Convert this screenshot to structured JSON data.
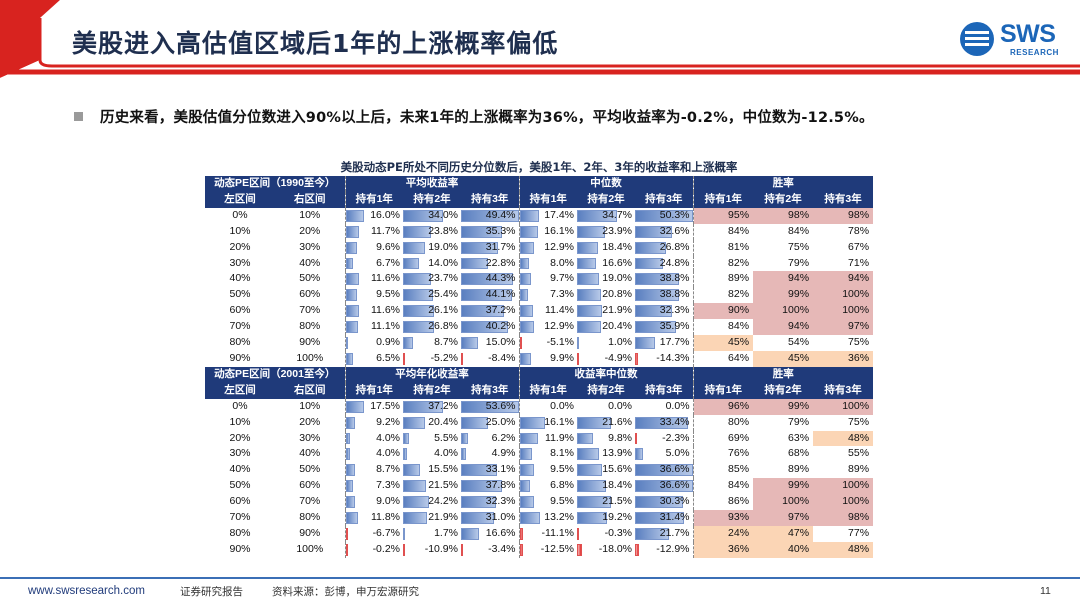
{
  "header": {
    "title": "美股进入高估值区域后1年的上涨概率偏低",
    "logo_text": "SWS",
    "logo_sub": "RESEARCH",
    "accent": "#d8231f"
  },
  "bullet": "历史来看，美股估值分位数进入90%以上后，未来1年的上涨概率为36%，平均收益率为-0.2%，中位数为-12.5%。",
  "table": {
    "caption": "美股动态PE所处不同历史分位数后，美股1年、2年、3年的收益率和上涨概率",
    "sections": [
      {
        "range_title": "动态PE区间（1990至今）",
        "group1_title": "平均收益率",
        "group2_title": "中位数",
        "group3_title": "胜率",
        "sub_headers": [
          "左区间",
          "右区间",
          "持有1年",
          "持有2年",
          "持有3年",
          "持有1年",
          "持有2年",
          "持有3年",
          "持有1年",
          "持有2年",
          "持有3年"
        ],
        "rows": [
          {
            "l": "0%",
            "r": "10%",
            "v": [
              16.0,
              34.0,
              49.4,
              17.4,
              34.7,
              50.3
            ],
            "w": [
              95,
              98,
              98
            ],
            "hl": [
              "pink",
              "pink",
              "pink"
            ]
          },
          {
            "l": "10%",
            "r": "20%",
            "v": [
              11.7,
              23.8,
              35.3,
              16.1,
              23.9,
              32.6
            ],
            "w": [
              84,
              84,
              78
            ],
            "hl": [
              "",
              "",
              ""
            ]
          },
          {
            "l": "20%",
            "r": "30%",
            "v": [
              9.6,
              19.0,
              31.7,
              12.9,
              18.4,
              26.8
            ],
            "w": [
              81,
              75,
              67
            ],
            "hl": [
              "",
              "",
              ""
            ]
          },
          {
            "l": "30%",
            "r": "40%",
            "v": [
              6.7,
              14.0,
              22.8,
              8.0,
              16.6,
              24.8
            ],
            "w": [
              82,
              79,
              71
            ],
            "hl": [
              "",
              "",
              ""
            ]
          },
          {
            "l": "40%",
            "r": "50%",
            "v": [
              11.6,
              23.7,
              44.3,
              9.7,
              19.0,
              38.8
            ],
            "w": [
              89,
              94,
              94
            ],
            "hl": [
              "",
              "pink",
              "pink"
            ]
          },
          {
            "l": "50%",
            "r": "60%",
            "v": [
              9.5,
              25.4,
              44.1,
              7.3,
              20.8,
              38.8
            ],
            "w": [
              82,
              99,
              100
            ],
            "hl": [
              "",
              "pink",
              "pink"
            ]
          },
          {
            "l": "60%",
            "r": "70%",
            "v": [
              11.6,
              26.1,
              37.2,
              11.4,
              21.9,
              32.3
            ],
            "w": [
              90,
              100,
              100
            ],
            "hl": [
              "pink",
              "pink",
              "pink"
            ]
          },
          {
            "l": "70%",
            "r": "80%",
            "v": [
              11.1,
              26.8,
              40.2,
              12.9,
              20.4,
              35.9
            ],
            "w": [
              84,
              94,
              97
            ],
            "hl": [
              "",
              "pink",
              "pink"
            ]
          },
          {
            "l": "80%",
            "r": "90%",
            "v": [
              0.9,
              8.7,
              15.0,
              -5.1,
              1.0,
              17.7
            ],
            "w": [
              45,
              54,
              75
            ],
            "hl": [
              "peach",
              "",
              ""
            ]
          },
          {
            "l": "90%",
            "r": "100%",
            "v": [
              6.5,
              -5.2,
              -8.4,
              9.9,
              -4.9,
              -14.3
            ],
            "w": [
              64,
              45,
              36
            ],
            "hl": [
              "",
              "peach",
              "peach"
            ]
          }
        ]
      },
      {
        "range_title": "动态PE区间（2001至今）",
        "group1_title": "平均年化收益率",
        "group2_title": "收益率中位数",
        "group3_title": "胜率",
        "sub_headers": [
          "左区间",
          "右区间",
          "持有1年",
          "持有2年",
          "持有3年",
          "持有1年",
          "持有2年",
          "持有3年",
          "持有1年",
          "持有2年",
          "持有3年"
        ],
        "rows": [
          {
            "l": "0%",
            "r": "10%",
            "v": [
              17.5,
              37.2,
              53.6,
              0.0,
              0.0,
              0.0
            ],
            "w": [
              96,
              99,
              100
            ],
            "hl": [
              "pink",
              "pink",
              "pink"
            ]
          },
          {
            "l": "10%",
            "r": "20%",
            "v": [
              9.2,
              20.4,
              25.0,
              16.1,
              21.6,
              33.4
            ],
            "w": [
              80,
              79,
              75
            ],
            "hl": [
              "",
              "",
              ""
            ]
          },
          {
            "l": "20%",
            "r": "30%",
            "v": [
              4.0,
              5.5,
              6.2,
              11.9,
              9.8,
              -2.3
            ],
            "w": [
              69,
              63,
              48
            ],
            "hl": [
              "",
              "",
              "peach"
            ]
          },
          {
            "l": "30%",
            "r": "40%",
            "v": [
              4.0,
              4.0,
              4.9,
              8.1,
              13.9,
              5.0
            ],
            "w": [
              76,
              68,
              55
            ],
            "hl": [
              "",
              "",
              ""
            ]
          },
          {
            "l": "40%",
            "r": "50%",
            "v": [
              8.7,
              15.5,
              33.1,
              9.5,
              15.6,
              36.6
            ],
            "w": [
              85,
              89,
              89
            ],
            "hl": [
              "",
              "",
              ""
            ]
          },
          {
            "l": "50%",
            "r": "60%",
            "v": [
              7.3,
              21.5,
              37.8,
              6.8,
              18.4,
              36.6
            ],
            "w": [
              84,
              99,
              100
            ],
            "hl": [
              "",
              "pink",
              "pink"
            ]
          },
          {
            "l": "60%",
            "r": "70%",
            "v": [
              9.0,
              24.2,
              32.3,
              9.5,
              21.5,
              30.3
            ],
            "w": [
              86,
              100,
              100
            ],
            "hl": [
              "",
              "pink",
              "pink"
            ]
          },
          {
            "l": "70%",
            "r": "80%",
            "v": [
              11.8,
              21.9,
              31.0,
              13.2,
              19.2,
              31.4
            ],
            "w": [
              93,
              97,
              98
            ],
            "hl": [
              "pink",
              "pink",
              "pink"
            ]
          },
          {
            "l": "80%",
            "r": "90%",
            "v": [
              -6.7,
              1.7,
              16.6,
              -11.1,
              -0.3,
              21.7
            ],
            "w": [
              24,
              47,
              77
            ],
            "hl": [
              "peach",
              "peach",
              ""
            ]
          },
          {
            "l": "90%",
            "r": "100%",
            "v": [
              -0.2,
              -10.9,
              -3.4,
              -12.5,
              -18.0,
              -12.9
            ],
            "w": [
              36,
              40,
              48
            ],
            "hl": [
              "peach",
              "peach",
              "peach"
            ]
          }
        ]
      }
    ]
  },
  "footer": {
    "url": "www.swsresearch.com",
    "note": "证券研究报告",
    "source": "资料来源：彭博，申万宏源研究",
    "page": "11"
  },
  "colors": {
    "header_fill": "#1f3a7a",
    "bar_positive": "#5a7fc0",
    "bar_negative": "#e03030",
    "win_pink": "#e6b8b7",
    "win_peach": "#fbd5b5"
  }
}
